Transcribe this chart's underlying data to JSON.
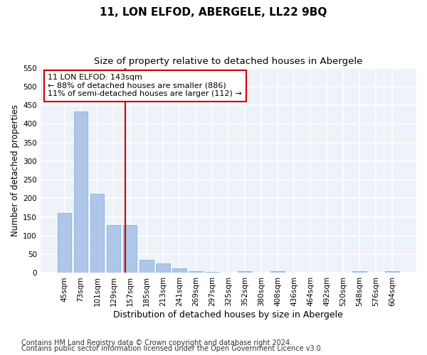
{
  "title": "11, LON ELFOD, ABERGELE, LL22 9BQ",
  "subtitle": "Size of property relative to detached houses in Abergele",
  "xlabel": "Distribution of detached houses by size in Abergele",
  "ylabel": "Number of detached properties",
  "bar_color": "#aec6e8",
  "bar_edge_color": "#8ab4d8",
  "background_color": "#eef2f9",
  "grid_color": "#ffffff",
  "fig_background": "#ffffff",
  "categories": [
    "45sqm",
    "73sqm",
    "101sqm",
    "129sqm",
    "157sqm",
    "185sqm",
    "213sqm",
    "241sqm",
    "269sqm",
    "297sqm",
    "325sqm",
    "352sqm",
    "380sqm",
    "408sqm",
    "436sqm",
    "464sqm",
    "492sqm",
    "520sqm",
    "548sqm",
    "576sqm",
    "604sqm"
  ],
  "values": [
    160,
    433,
    213,
    128,
    128,
    35,
    25,
    12,
    5,
    3,
    0,
    5,
    0,
    5,
    0,
    0,
    0,
    0,
    5,
    0,
    5
  ],
  "ylim": [
    0,
    550
  ],
  "yticks": [
    0,
    50,
    100,
    150,
    200,
    250,
    300,
    350,
    400,
    450,
    500,
    550
  ],
  "property_line_x": 3.72,
  "property_line_color": "#cc0000",
  "annotation_text": "11 LON ELFOD: 143sqm\n← 88% of detached houses are smaller (886)\n11% of semi-detached houses are larger (112) →",
  "annotation_box_color": "#ffffff",
  "annotation_box_edge": "#cc0000",
  "footer_line1": "Contains HM Land Registry data © Crown copyright and database right 2024.",
  "footer_line2": "Contains public sector information licensed under the Open Government Licence v3.0.",
  "title_fontsize": 11,
  "subtitle_fontsize": 9.5,
  "axis_label_fontsize": 8.5,
  "tick_fontsize": 7.5,
  "annotation_fontsize": 8,
  "footer_fontsize": 7
}
